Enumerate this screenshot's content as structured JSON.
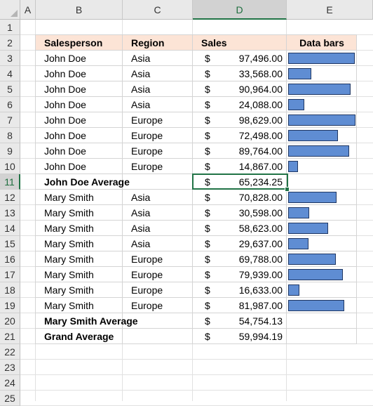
{
  "columns": [
    "A",
    "B",
    "C",
    "D",
    "E"
  ],
  "rows": [
    "1",
    "2",
    "3",
    "4",
    "5",
    "6",
    "7",
    "8",
    "9",
    "10",
    "11",
    "12",
    "13",
    "14",
    "15",
    "16",
    "17",
    "18",
    "19",
    "20",
    "21",
    "22",
    "23",
    "24",
    "25"
  ],
  "table": {
    "headers": {
      "salesperson": "Salesperson",
      "region": "Region",
      "sales": "Sales",
      "data_bars": "Data bars"
    },
    "currency_symbol": "$",
    "bar_max_value": 98629,
    "records": [
      {
        "salesperson": "John Doe",
        "region": "Asia",
        "sales": "97,496.00",
        "value": 97496,
        "bar": true,
        "bold": false
      },
      {
        "salesperson": "John Doe",
        "region": "Asia",
        "sales": "33,568.00",
        "value": 33568,
        "bar": true,
        "bold": false
      },
      {
        "salesperson": "John Doe",
        "region": "Asia",
        "sales": "90,964.00",
        "value": 90964,
        "bar": true,
        "bold": false
      },
      {
        "salesperson": "John Doe",
        "region": "Asia",
        "sales": "24,088.00",
        "value": 24088,
        "bar": true,
        "bold": false
      },
      {
        "salesperson": "John Doe",
        "region": "Europe",
        "sales": "98,629.00",
        "value": 98629,
        "bar": true,
        "bold": false
      },
      {
        "salesperson": "John Doe",
        "region": "Europe",
        "sales": "72,498.00",
        "value": 72498,
        "bar": true,
        "bold": false
      },
      {
        "salesperson": "John Doe",
        "region": "Europe",
        "sales": "89,764.00",
        "value": 89764,
        "bar": true,
        "bold": false
      },
      {
        "salesperson": "John Doe",
        "region": "Europe",
        "sales": "14,867.00",
        "value": 14867,
        "bar": true,
        "bold": false
      },
      {
        "salesperson": "John Doe Average",
        "region": "",
        "sales": "65,234.25",
        "value": 65234.25,
        "bar": false,
        "bold": true
      },
      {
        "salesperson": "Mary Smith",
        "region": "Asia",
        "sales": "70,828.00",
        "value": 70828,
        "bar": true,
        "bold": false
      },
      {
        "salesperson": "Mary Smith",
        "region": "Asia",
        "sales": "30,598.00",
        "value": 30598,
        "bar": true,
        "bold": false
      },
      {
        "salesperson": "Mary Smith",
        "region": "Asia",
        "sales": "58,623.00",
        "value": 58623,
        "bar": true,
        "bold": false
      },
      {
        "salesperson": "Mary Smith",
        "region": "Asia",
        "sales": "29,637.00",
        "value": 29637,
        "bar": true,
        "bold": false
      },
      {
        "salesperson": "Mary Smith",
        "region": "Europe",
        "sales": "69,788.00",
        "value": 69788,
        "bar": true,
        "bold": false
      },
      {
        "salesperson": "Mary Smith",
        "region": "Europe",
        "sales": "79,939.00",
        "value": 79939,
        "bar": true,
        "bold": false
      },
      {
        "salesperson": "Mary Smith",
        "region": "Europe",
        "sales": "16,633.00",
        "value": 16633,
        "bar": true,
        "bold": false
      },
      {
        "salesperson": "Mary Smith",
        "region": "Europe",
        "sales": "81,987.00",
        "value": 81987,
        "bar": true,
        "bold": false
      },
      {
        "salesperson": "Mary Smith Average",
        "region": "",
        "sales": "54,754.13",
        "value": 54754.13,
        "bar": false,
        "bold": true
      },
      {
        "salesperson": "Grand Average",
        "region": "",
        "sales": "59,994.19",
        "value": 59994.19,
        "bar": false,
        "bold": true
      }
    ]
  },
  "selection": {
    "active_cell": "D11",
    "active_column": "D",
    "active_row": "11"
  },
  "colors": {
    "header_fill": "#fce4d6",
    "bar_fill": "#5f8dd3",
    "bar_border": "#1f3763",
    "selection": "#217346"
  }
}
